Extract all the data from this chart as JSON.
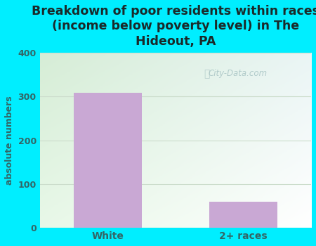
{
  "categories": [
    "White",
    "2+ races"
  ],
  "values": [
    308,
    60
  ],
  "bar_color": "#c9a8d4",
  "title": "Breakdown of poor residents within races\n(income below poverty level) in The\nHideout, PA",
  "ylabel": "absolute numbers",
  "ylim": [
    0,
    400
  ],
  "yticks": [
    0,
    100,
    200,
    300,
    400
  ],
  "outer_bg": "#00eeff",
  "plot_bg_topleft": "#d6edd6",
  "plot_bg_topright": "#eaf5f5",
  "plot_bg_bottomright": "#ffffff",
  "title_color": "#1a2a2a",
  "axis_color": "#336666",
  "tick_color": "#336666",
  "watermark": "City-Data.com",
  "bar_width": 0.5,
  "grid_color": "#ccddcc",
  "title_fontsize": 12.5
}
